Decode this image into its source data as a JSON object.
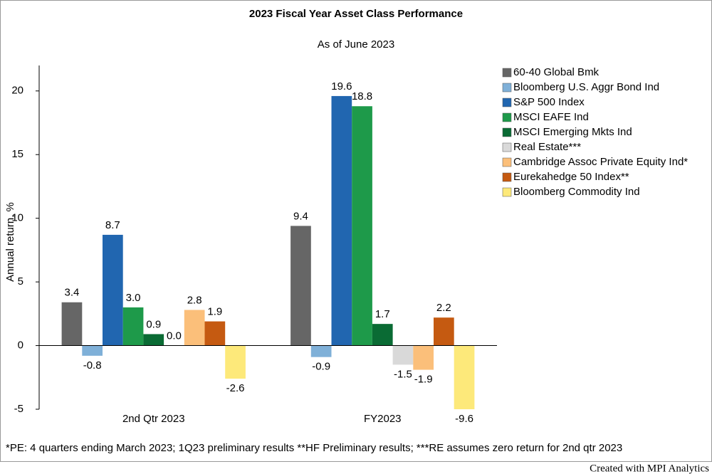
{
  "chart_data": {
    "type": "bar",
    "title": "2023 Fiscal Year Asset Class Performance",
    "subtitle": "As of June 2023",
    "y_label": "Annual return, %",
    "footnote": "*PE: 4 quarters ending March 2023; 1Q23 preliminary results **HF Preliminary results; ***RE assumes zero return for 2nd qtr 2023",
    "credit": "Created with MPI Analytics",
    "categories": [
      "2nd Qtr 2023",
      "FY2023"
    ],
    "series": [
      {
        "name": "60-40 Global Bmk",
        "color": "#666666",
        "values": [
          3.4,
          9.4
        ],
        "value_labels": [
          "3.4",
          "9.4"
        ]
      },
      {
        "name": "Bloomberg U.S. Aggr Bond Ind",
        "color": "#7fb0d8",
        "values": [
          -0.8,
          -0.9
        ],
        "value_labels": [
          "-0.8",
          "-0.9"
        ]
      },
      {
        "name": "S&P 500 Index",
        "color": "#2166b0",
        "values": [
          8.7,
          19.6
        ],
        "value_labels": [
          "8.7",
          "19.6"
        ]
      },
      {
        "name": "MSCI EAFE Ind",
        "color": "#1e9a4a",
        "values": [
          3.0,
          18.8
        ],
        "value_labels": [
          "3.0",
          "18.8"
        ]
      },
      {
        "name": "MSCI Emerging Mkts Ind",
        "color": "#0a6b34",
        "values": [
          0.9,
          1.7
        ],
        "value_labels": [
          "0.9",
          "1.7"
        ]
      },
      {
        "name": "Real Estate***",
        "color": "#d9d9d9",
        "values": [
          0.0,
          -1.5
        ],
        "value_labels": [
          "0.0",
          "-1.5"
        ]
      },
      {
        "name": "Cambridge Assoc Private Equity Ind*",
        "color": "#fbbf7a",
        "values": [
          2.8,
          -1.9
        ],
        "value_labels": [
          "2.8",
          "-1.9"
        ]
      },
      {
        "name": "Eurekahedge 50 Index**",
        "color": "#c55a11",
        "values": [
          1.9,
          2.2
        ],
        "value_labels": [
          "1.9",
          "2.2"
        ]
      },
      {
        "name": "Bloomberg Commodity Ind",
        "color": "#fde97a",
        "values": [
          -2.6,
          -9.6
        ],
        "value_labels": [
          "-2.6",
          "-9.6"
        ]
      }
    ],
    "ylim": [
      -5,
      22
    ],
    "yticks": [
      -5,
      0,
      5,
      10,
      15,
      20
    ],
    "legend": "right"
  }
}
